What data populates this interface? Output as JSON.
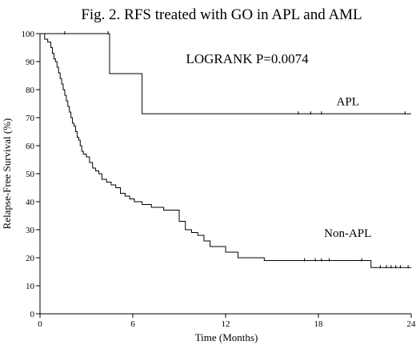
{
  "chart_data": {
    "type": "line",
    "title": "Fig. 2. RFS treated with GO in APL and AML",
    "xlabel": "Time (Months)",
    "ylabel": "Relapse-Free Survival (%)",
    "xlim": [
      0,
      24
    ],
    "ylim": [
      0,
      100
    ],
    "xticks": [
      0,
      6,
      12,
      18,
      24
    ],
    "yticks": [
      0,
      10,
      20,
      30,
      40,
      50,
      60,
      70,
      80,
      90,
      100
    ],
    "grid": false,
    "legend": "none",
    "annotations": [
      {
        "text": "LOGRANK P=0.0074",
        "x": 13.4,
        "y": 89.5
      }
    ],
    "series": [
      {
        "name": "APL",
        "step": true,
        "label_pos": {
          "x": 19.9,
          "y": 74.5
        },
        "x": [
          0,
          4.5,
          6.6,
          24
        ],
        "y": [
          100,
          85.7,
          71.4,
          71.4
        ],
        "censored": [
          {
            "x": 1.6,
            "y": 100
          },
          {
            "x": 4.4,
            "y": 100
          },
          {
            "x": 16.7,
            "y": 71.4
          },
          {
            "x": 17.5,
            "y": 71.4
          },
          {
            "x": 18.2,
            "y": 71.4
          },
          {
            "x": 23.6,
            "y": 71.4
          }
        ]
      },
      {
        "name": "Non-APL",
        "step": true,
        "label_pos": {
          "x": 19.9,
          "y": 27.5
        },
        "x": [
          0,
          0.3,
          0.5,
          0.7,
          0.8,
          0.9,
          1.0,
          1.1,
          1.2,
          1.3,
          1.4,
          1.5,
          1.6,
          1.7,
          1.8,
          1.9,
          2.0,
          2.1,
          2.2,
          2.3,
          2.4,
          2.5,
          2.6,
          2.7,
          2.8,
          3.0,
          3.2,
          3.4,
          3.6,
          3.8,
          4.0,
          4.3,
          4.6,
          4.9,
          5.2,
          5.5,
          5.8,
          6.1,
          6.6,
          7.2,
          8.0,
          9.0,
          9.4,
          9.8,
          10.2,
          10.6,
          11.0,
          12.0,
          12.8,
          14.5,
          21.4,
          24
        ],
        "y": [
          100,
          98,
          97,
          95,
          93,
          91,
          90,
          88,
          86,
          84,
          82,
          80,
          78,
          76,
          74,
          72,
          70,
          68,
          67,
          65,
          63,
          62,
          60,
          58,
          57,
          56,
          54,
          52,
          51,
          50,
          48,
          47,
          46,
          45,
          43,
          42,
          41,
          40,
          39,
          38,
          37,
          33,
          30,
          29,
          28,
          26,
          24,
          22,
          20,
          19,
          16.5,
          16.5
        ],
        "censored": [
          {
            "x": 17.1,
            "y": 19
          },
          {
            "x": 17.8,
            "y": 19
          },
          {
            "x": 18.2,
            "y": 19
          },
          {
            "x": 18.7,
            "y": 19
          },
          {
            "x": 20.8,
            "y": 19
          },
          {
            "x": 22.0,
            "y": 16.5
          },
          {
            "x": 22.4,
            "y": 16.5
          },
          {
            "x": 22.7,
            "y": 16.5
          },
          {
            "x": 23.0,
            "y": 16.5
          },
          {
            "x": 23.3,
            "y": 16.5
          },
          {
            "x": 23.8,
            "y": 16.5
          }
        ]
      }
    ]
  }
}
